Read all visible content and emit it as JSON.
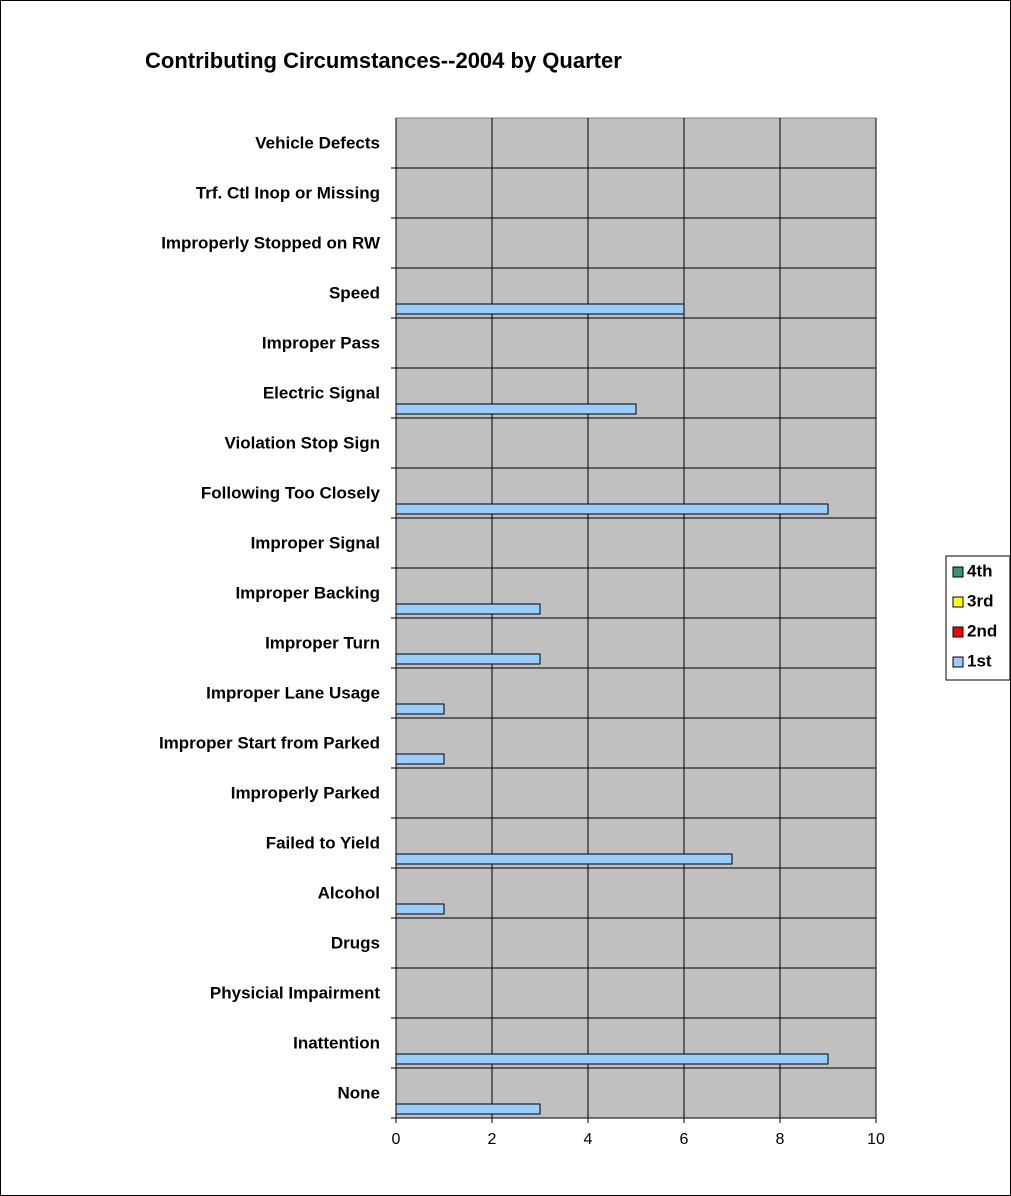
{
  "chart_data": {
    "type": "hbar",
    "title": "Contributing Circumstances--2004 by Quarter",
    "categories": [
      "Vehicle Defects",
      "Trf. Ctl Inop or Missing",
      "Improperly Stopped on RW",
      "Speed",
      "Improper Pass",
      "Electric Signal",
      "Violation Stop Sign",
      "Following Too Closely",
      "Improper Signal",
      "Improper Backing",
      "Improper Turn",
      "Improper Lane Usage",
      "Improper Start from Parked",
      "Improperly Parked",
      "Failed to Yield",
      "Alcohol",
      "Drugs",
      "Physicial Impairment",
      "Inattention",
      "None"
    ],
    "series": [
      {
        "name": "1st",
        "color": "#99ccff",
        "values": [
          0,
          0,
          0,
          6,
          0,
          5,
          0,
          9,
          0,
          3,
          3,
          1,
          1,
          0,
          7,
          1,
          0,
          0,
          9,
          3
        ]
      },
      {
        "name": "2nd",
        "color": "#ff0000",
        "values": [
          0,
          0,
          0,
          0,
          0,
          0,
          0,
          0,
          0,
          0,
          0,
          0,
          0,
          0,
          0,
          0,
          0,
          0,
          0,
          0
        ]
      },
      {
        "name": "3rd",
        "color": "#ffff00",
        "values": [
          0,
          0,
          0,
          0,
          0,
          0,
          0,
          0,
          0,
          0,
          0,
          0,
          0,
          0,
          0,
          0,
          0,
          0,
          0,
          0
        ]
      },
      {
        "name": "4th",
        "color": "#339966",
        "values": [
          0,
          0,
          0,
          0,
          0,
          0,
          0,
          0,
          0,
          0,
          0,
          0,
          0,
          0,
          0,
          0,
          0,
          0,
          0,
          0
        ]
      }
    ],
    "xlim": [
      0,
      10
    ],
    "xticks": [
      0,
      2,
      4,
      6,
      8,
      10
    ],
    "grid": true,
    "plot_color": "#c0c0c0",
    "legend": "right"
  }
}
